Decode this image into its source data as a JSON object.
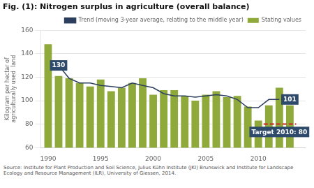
{
  "chart_data": {
    "type": "bar",
    "title": "Fig. (1): Nitrogen surplus in agriculture (overall balance)",
    "source": "Source: Institute for Plant Production and Soil Science, Julius Kühn Institute (JKI) Brunswick and Institute for Landscape Ecology and Resource Management (ILR), University of Giessen, 2014.",
    "ylabel": "Kilogram per hectar of\nagriculturally used  land",
    "xlim": [
      1989.3,
      2014.5
    ],
    "xticks": [
      1990,
      1995,
      2000,
      2005,
      2010
    ],
    "ylim": [
      60,
      160
    ],
    "yticks": [
      60,
      80,
      100,
      120,
      140,
      160
    ],
    "grid": true,
    "legend": "upper right",
    "series": [
      {
        "name": "Stating values",
        "type": "bar",
        "color": "#8faa3a",
        "x": [
          1990,
          1991,
          1992,
          1993,
          1994,
          1995,
          1996,
          1997,
          1998,
          1999,
          2000,
          2001,
          2002,
          2003,
          2004,
          2005,
          2006,
          2007,
          2008,
          2009,
          2010,
          2011,
          2012,
          2013
        ],
        "values": [
          148,
          121,
          119,
          115,
          112,
          118,
          108,
          111,
          115,
          119,
          105,
          109,
          109,
          104,
          100,
          105,
          108,
          103,
          104,
          95,
          83,
          96,
          111,
          96
        ]
      },
      {
        "name": "Trend (moving 3-year average, relating to the middle year)",
        "type": "line",
        "color": "#2d3f5f",
        "x": [
          1991,
          1992,
          1993,
          1994,
          1995,
          1996,
          1997,
          1998,
          1999,
          2000,
          2001,
          2002,
          2003,
          2004,
          2005,
          2006,
          2007,
          2008,
          2009,
          2010,
          2011,
          2012
        ],
        "values": [
          130,
          119,
          115,
          115,
          113,
          112,
          111,
          115,
          113,
          111,
          106,
          104,
          104,
          103,
          104,
          105,
          104,
          101,
          94,
          94,
          101,
          101
        ]
      }
    ],
    "target": {
      "value": 80,
      "x_start": 2010.5,
      "x_end": 2013.6,
      "color": "#cc2222",
      "label": "Target 2010: 80",
      "label_x": 2012.0,
      "label_y": 76
    },
    "annotations": [
      {
        "text": "130",
        "x": 1991,
        "y": 130
      },
      {
        "text": "101",
        "x": 2013,
        "y": 101
      }
    ]
  }
}
